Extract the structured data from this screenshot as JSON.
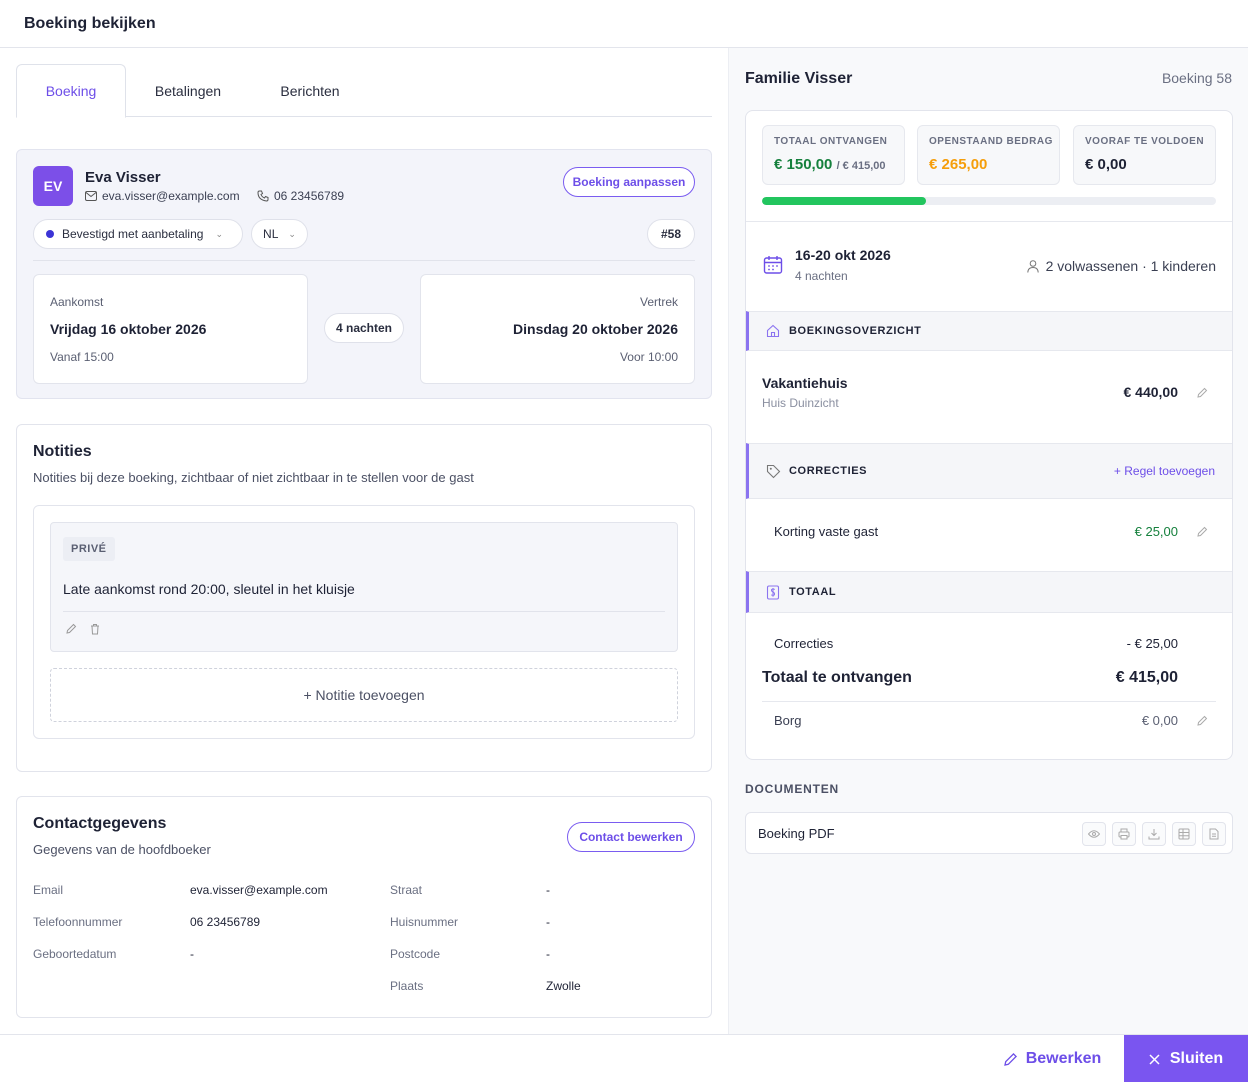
{
  "window": {
    "title": "Boeking bekijken"
  },
  "tabs": [
    {
      "label": "Boeking",
      "active": true
    },
    {
      "label": "Betalingen",
      "active": false
    },
    {
      "label": "Berichten",
      "active": false
    }
  ],
  "guest": {
    "initials": "EV",
    "name": "Eva Visser",
    "email": "eva.visser@example.com",
    "phone": "06 23456789",
    "edit_button": "Boeking aanpassen",
    "status": "Bevestigd met aanbetaling",
    "language": "NL",
    "booking_tag": "#58"
  },
  "stay": {
    "arrival_label": "Aankomst",
    "arrival_date": "Vrijdag 16 oktober 2026",
    "arrival_time": "Vanaf 15:00",
    "nights": "4 nachten",
    "departure_label": "Vertrek",
    "departure_date": "Dinsdag 20 oktober 2026",
    "departure_time": "Voor 10:00"
  },
  "notes": {
    "title": "Notities",
    "subtitle": "Notities bij deze boeking, zichtbaar of niet zichtbaar in te stellen voor de gast",
    "items": [
      {
        "badge": "PRIVÉ",
        "text": "Late aankomst rond 20:00, sleutel in het kluisje"
      }
    ],
    "add_label": "+ Notitie toevoegen"
  },
  "contact": {
    "title": "Contactgegevens",
    "subtitle": "Gegevens van de hoofdboeker",
    "edit_button": "Contact bewerken",
    "left": [
      {
        "label": "Email",
        "value": "eva.visser@example.com"
      },
      {
        "label": "Telefoonnummer",
        "value": "06 23456789"
      },
      {
        "label": "Geboortedatum",
        "value": "-"
      }
    ],
    "right": [
      {
        "label": "Straat",
        "value": "-"
      },
      {
        "label": "Huisnummer",
        "value": "-"
      },
      {
        "label": "Postcode",
        "value": "-"
      },
      {
        "label": "Plaats",
        "value": "Zwolle"
      }
    ]
  },
  "summary": {
    "family": "Familie Visser",
    "booking_number": "Boeking 58",
    "stats": [
      {
        "label": "TOTAAL ONTVANGEN",
        "value": "€ 150,00",
        "extra": "/ € 415,00",
        "color": "#15803d"
      },
      {
        "label": "OPENSTAAND BEDRAG",
        "value": "€ 265,00",
        "extra": "",
        "color": "#f59e0b"
      },
      {
        "label": "VOORAF TE VOLDOEN",
        "value": "€ 0,00",
        "extra": "",
        "color": "#1e2235"
      }
    ],
    "paid_fraction": 0.3614,
    "period": "16-20 okt 2026",
    "period_nights": "4 nachten",
    "guests": "2 volwassenen · 1 kinderen",
    "overview_title": "BOEKINGSOVERZICHT",
    "accommodation": {
      "name": "Vakantiehuis",
      "sub": "Huis Duinzicht",
      "price": "€ 440,00"
    },
    "corrections_title": "CORRECTIES",
    "add_line": "+ Regel toevoegen",
    "correction": {
      "label": "Korting vaste gast",
      "value": "€ 25,00"
    },
    "total_title": "TOTAAL",
    "totals": {
      "corrections_label": "Correcties",
      "corrections_value": "- € 25,00",
      "grand_label": "Totaal te ontvangen",
      "grand_value": "€ 415,00",
      "deposit_label": "Borg",
      "deposit_value": "€ 0,00"
    },
    "documents_title": "DOCUMENTEN",
    "document": "Boeking PDF"
  },
  "footer": {
    "edit": "Bewerken",
    "close": "Sluiten"
  },
  "colors": {
    "accent": "#7a55f0",
    "positive": "#15803d",
    "warning": "#f59e0b",
    "progress": "#22c55e"
  }
}
